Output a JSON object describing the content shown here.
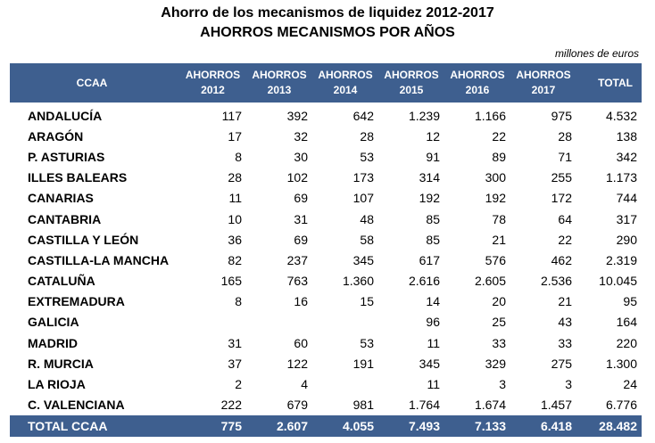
{
  "title": "Ahorro de los mecanismos de liquidez 2012-2017",
  "subtitle": "AHORROS MECANISMOS POR AÑOS",
  "units": "millones de euros",
  "table": {
    "headers": [
      {
        "l1": "CCAA",
        "l2": ""
      },
      {
        "l1": "AHORROS",
        "l2": "2012"
      },
      {
        "l1": "AHORROS",
        "l2": "2013"
      },
      {
        "l1": "AHORROS",
        "l2": "2014"
      },
      {
        "l1": "AHORROS",
        "l2": "2015"
      },
      {
        "l1": "AHORROS",
        "l2": "2016"
      },
      {
        "l1": "AHORROS",
        "l2": "2017"
      },
      {
        "l1": "TOTAL",
        "l2": ""
      }
    ],
    "rows": [
      [
        "ANDALUCÍA",
        "117",
        "392",
        "642",
        "1.239",
        "1.166",
        "975",
        "4.532"
      ],
      [
        "ARAGÓN",
        "17",
        "32",
        "28",
        "12",
        "22",
        "28",
        "138"
      ],
      [
        "P. ASTURIAS",
        "8",
        "30",
        "53",
        "91",
        "89",
        "71",
        "342"
      ],
      [
        "ILLES BALEARS",
        "28",
        "102",
        "173",
        "314",
        "300",
        "255",
        "1.173"
      ],
      [
        "CANARIAS",
        "11",
        "69",
        "107",
        "192",
        "192",
        "172",
        "744"
      ],
      [
        "CANTABRIA",
        "10",
        "31",
        "48",
        "85",
        "78",
        "64",
        "317"
      ],
      [
        "CASTILLA Y LEÓN",
        "36",
        "69",
        "58",
        "85",
        "21",
        "22",
        "290"
      ],
      [
        "CASTILLA-LA MANCHA",
        "82",
        "237",
        "345",
        "617",
        "576",
        "462",
        "2.319"
      ],
      [
        "CATALUÑA",
        "165",
        "763",
        "1.360",
        "2.616",
        "2.605",
        "2.536",
        "10.045"
      ],
      [
        "EXTREMADURA",
        "8",
        "16",
        "15",
        "14",
        "20",
        "21",
        "95"
      ],
      [
        "GALICIA",
        "",
        "",
        "",
        "96",
        "25",
        "43",
        "164"
      ],
      [
        "MADRID",
        "31",
        "60",
        "53",
        "11",
        "33",
        "33",
        "220"
      ],
      [
        "R. MURCIA",
        "37",
        "122",
        "191",
        "345",
        "329",
        "275",
        "1.300"
      ],
      [
        "LA RIOJA",
        "2",
        "4",
        "",
        "11",
        "3",
        "3",
        "24"
      ],
      [
        "C. VALENCIANA",
        "222",
        "679",
        "981",
        "1.764",
        "1.674",
        "1.457",
        "6.776"
      ]
    ],
    "total_row": [
      "TOTAL CCAA",
      "775",
      "2.607",
      "4.055",
      "7.493",
      "7.133",
      "6.418",
      "28.482"
    ]
  }
}
